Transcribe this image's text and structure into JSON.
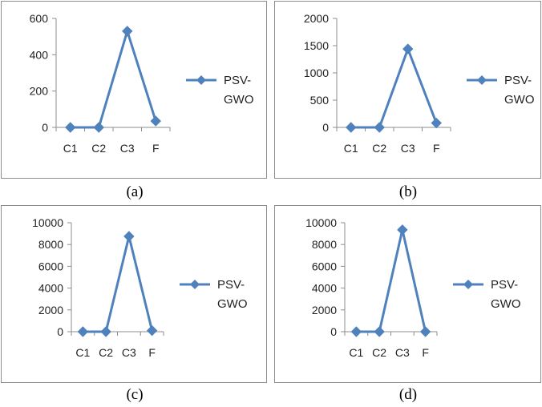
{
  "captions": [
    "(a)",
    "(b)",
    "(c)",
    "(d)"
  ],
  "chart_data": [
    {
      "type": "line",
      "categories": [
        "C1",
        "C2",
        "C3",
        "F"
      ],
      "series": [
        {
          "name": "PSV-GWO",
          "values": [
            0,
            0,
            530,
            35
          ],
          "color": "#4f81bd",
          "marker": "diamond"
        }
      ],
      "yticks": [
        "0",
        "200",
        "400",
        "600"
      ],
      "ylim": [
        0,
        600
      ],
      "legend": {
        "position": "right",
        "lines": [
          "PSV-",
          "GWO"
        ]
      },
      "grid": false
    },
    {
      "type": "line",
      "categories": [
        "C1",
        "C2",
        "C3",
        "F"
      ],
      "series": [
        {
          "name": "PSV-GWO",
          "values": [
            0,
            0,
            1440,
            80
          ],
          "color": "#4f81bd",
          "marker": "diamond"
        }
      ],
      "yticks": [
        "0",
        "500",
        "1000",
        "1500",
        "2000"
      ],
      "ylim": [
        0,
        2000
      ],
      "legend": {
        "position": "right",
        "lines": [
          "PSV-",
          "GWO"
        ]
      },
      "grid": false
    },
    {
      "type": "line",
      "categories": [
        "C1",
        "C2",
        "C3",
        "F"
      ],
      "series": [
        {
          "name": "PSV-GWO",
          "values": [
            0,
            0,
            8750,
            100
          ],
          "color": "#4f81bd",
          "marker": "diamond"
        }
      ],
      "yticks": [
        "0",
        "2000",
        "4000",
        "6000",
        "8000",
        "10000"
      ],
      "ylim": [
        0,
        10000
      ],
      "legend": {
        "position": "right",
        "lines": [
          "PSV-",
          "GWO"
        ]
      },
      "grid": false
    },
    {
      "type": "line",
      "categories": [
        "C1",
        "C2",
        "C3",
        "F"
      ],
      "series": [
        {
          "name": "PSV-GWO",
          "values": [
            0,
            0,
            9350,
            0
          ],
          "color": "#4f81bd",
          "marker": "diamond"
        }
      ],
      "yticks": [
        "0",
        "2000",
        "4000",
        "6000",
        "8000",
        "10000"
      ],
      "ylim": [
        0,
        10000
      ],
      "legend": {
        "position": "right",
        "lines": [
          "PSV-",
          "GWO"
        ]
      },
      "grid": false
    }
  ]
}
